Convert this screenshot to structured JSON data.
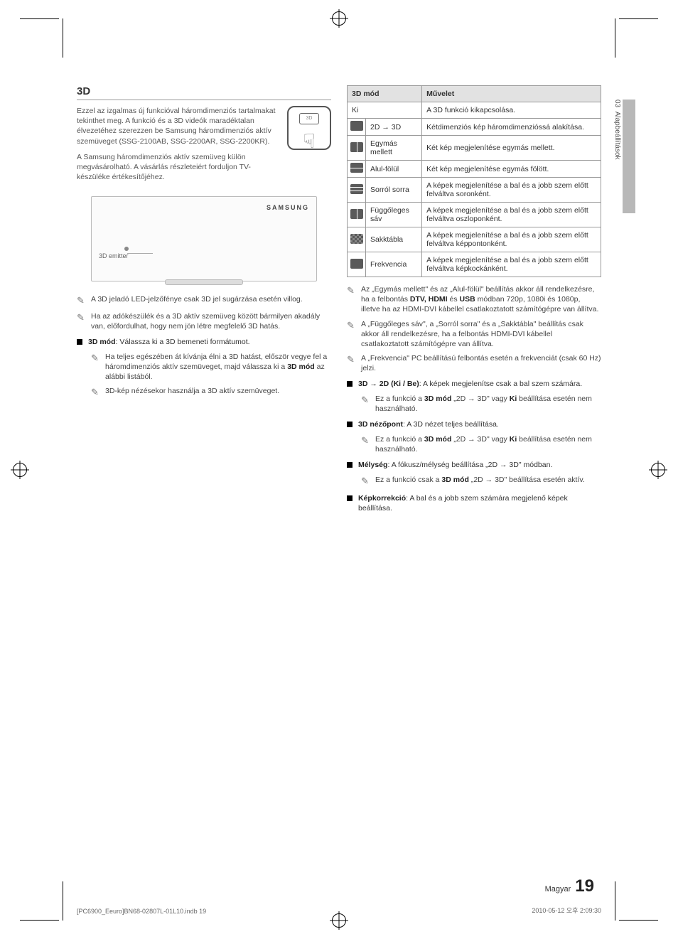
{
  "crop_marks": true,
  "side_tab": {
    "chapter": "03",
    "label": "Alapbeállítások"
  },
  "title": "3D",
  "intro_1": "Ezzel az izgalmas új funkcióval háromdimenziós tartalmakat tekinthet meg. A funkció és a 3D videók maradéktalan élvezetéhez szerezzen be Samsung háromdimenziós aktív szemüveget (SSG-2100AB, SSG-2200AR, SSG-2200KR).",
  "intro_2": "A Samsung háromdimenziós aktív szemüveg külön megvásárolható. A vásárlás részleteiért forduljon TV-készüléke értékesítőjéhez.",
  "tv_illus": {
    "emitter": "3D emitter",
    "logo": "SAMSUNG"
  },
  "left_notes": [
    "A 3D jeladó LED-jelzőfénye csak 3D jel sugárzása esetén villog.",
    "Ha az adókészülék és a 3D aktív szemüveg között bármilyen akadály van, előfordulhat, hogy nem jön létre megfelelő 3D hatás."
  ],
  "mode_bullet_lead": "3D mód",
  "mode_bullet_rest": ": Válassza ki a 3D bemeneti formátumot.",
  "left_sub_notes": [
    "Ha teljes egészében át kívánja élni a 3D hatást, először vegye fel a háromdimenziós aktív szemüveget, majd válassza ki a 3D mód az alábbi listából.",
    "3D-kép nézésekor használja a 3D aktív szemüveget."
  ],
  "left_sub_bold": "3D mód",
  "table": {
    "head": [
      "3D mód",
      "Művelet"
    ],
    "rows": [
      {
        "label": "Ki",
        "op": "A 3D funkció kikapcsolása.",
        "span": true
      },
      {
        "icon": "2d3d",
        "label": "2D → 3D",
        "op": "Kétdimenziós kép háromdimenzióssá alakítása."
      },
      {
        "icon": "sbs",
        "label": "Egymás mellett",
        "op": "Két kép megjelenítése egymás mellett."
      },
      {
        "icon": "tab",
        "label": "Alul-fölül",
        "op": "Két kép megjelenítése egymás fölött."
      },
      {
        "icon": "line",
        "label": "Sorról sorra",
        "op": "A képek megjelenítése a bal és a jobb szem előtt felváltva soronként."
      },
      {
        "icon": "vert",
        "label": "Függőleges sáv",
        "op": "A képek megjelenítése a bal és a jobb szem előtt felváltva oszloponként."
      },
      {
        "icon": "check",
        "label": "Sakktábla",
        "op": "A képek megjelenítése a bal és a jobb szem előtt felváltva képpontonként."
      },
      {
        "icon": "freq",
        "label": "Frekvencia",
        "op": "A képek megjelenítése a bal és a jobb szem előtt felváltva képkockánként."
      }
    ]
  },
  "right_notes": [
    {
      "pre": "Az „Egymás mellett\" és az „Alul-fölül\" beállítás akkor áll rendelkezésre, ha a felbontás ",
      "bold1": "DTV, HDMI",
      "mid": " és ",
      "bold2": "USB",
      "post": " módban 720p, 1080i és 1080p, illetve ha az HDMI-DVI kábellel csatlakoztatott számítógépre van állítva."
    },
    {
      "text": "A „Függőleges sáv\", a „Sorról sorra\" és a „Sakktábla\" beállítás csak akkor áll rendelkezésre, ha a felbontás HDMI-DVI kábellel csatlakoztatott számítógépre van állítva."
    },
    {
      "text": "A „Frekvencia\" PC beállítású felbontás esetén a frekvenciát (csak 60 Hz) jelzi."
    }
  ],
  "right_bullets": [
    {
      "lead": "3D → 2D (Ki / Be)",
      "rest": ": A képek megjelenítse csak a bal szem számára.",
      "sub": {
        "pre": "Ez a funkció a ",
        "b1": "3D mód",
        "mid": " „2D → 3D\" vagy ",
        "b2": "Ki",
        "post": " beállítása esetén nem használható."
      }
    },
    {
      "lead": "3D nézőpont",
      "rest": ": A 3D nézet teljes beállítása.",
      "sub": {
        "pre": "Ez a funkció a ",
        "b1": "3D mód",
        "mid": " „2D → 3D\" vagy ",
        "b2": "Ki",
        "post": " beállítása esetén nem használható."
      }
    },
    {
      "lead": "Mélység",
      "rest": ": A fókusz/mélység beállítása „2D → 3D\" módban.",
      "sub": {
        "pre": "Ez a funkció csak a ",
        "b1": "3D mód",
        "mid": " „2D → 3D\" beállítása esetén aktív.",
        "b2": "",
        "post": ""
      }
    },
    {
      "lead": "Képkorrekció",
      "rest": ": A bal és a jobb szem számára megjelenő képek beállítása.",
      "sub": null
    }
  ],
  "page_footer": {
    "lang": "Magyar",
    "num": "19"
  },
  "print_footer": {
    "left": "[PC6900_Eeuro]BN68-02807L-01L10.indb   19",
    "right": "2010-05-12   오후 2:09:30"
  }
}
